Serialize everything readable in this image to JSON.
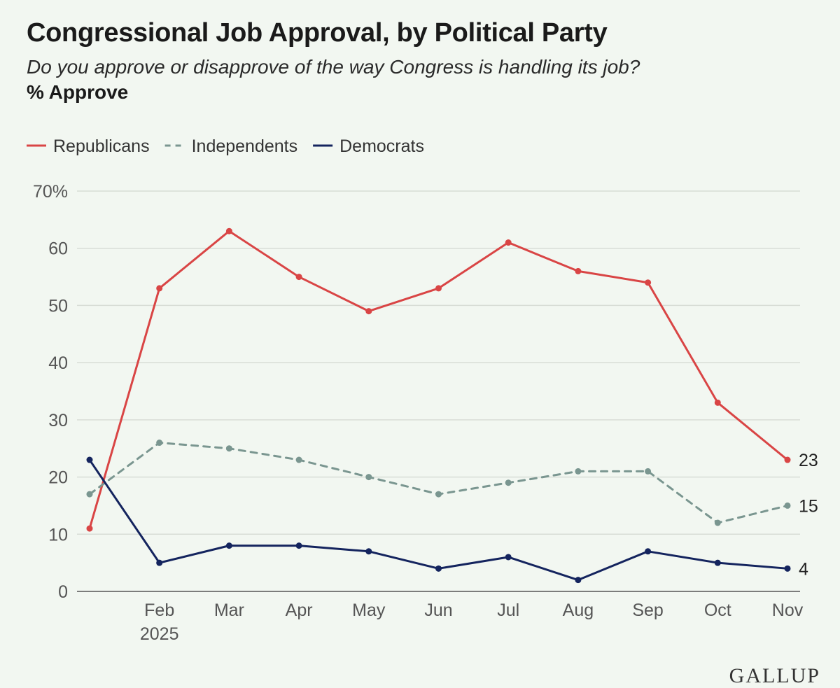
{
  "header": {
    "title": "Congressional Job Approval, by Political Party",
    "subtitle": "Do you approve or disapprove of the way Congress is handling its job?",
    "measure": "% Approve"
  },
  "brand": "GALLUP",
  "chart_data": {
    "type": "line",
    "title": "Congressional Job Approval, by Political Party",
    "subtitle": "Do you approve or disapprove of the way Congress is handling its job?",
    "ylabel": "% Approve",
    "xlabel": "",
    "categories": [
      "",
      "Feb",
      "Mar",
      "Apr",
      "May",
      "Jun",
      "Jul",
      "Aug",
      "Sep",
      "Oct",
      "Nov"
    ],
    "category_sublabels": [
      "",
      "2025",
      "",
      "",
      "",
      "",
      "",
      "",
      "",
      "",
      ""
    ],
    "ylim": [
      0,
      70
    ],
    "yticks": [
      0,
      10,
      20,
      30,
      40,
      50,
      60,
      70
    ],
    "ytick_labels": [
      "0",
      "10",
      "20",
      "30",
      "40",
      "50",
      "60",
      "70%"
    ],
    "grid": true,
    "legend_position": "top-left",
    "series": [
      {
        "name": "Republicans",
        "color": "#d94545",
        "style": "solid",
        "values": [
          11,
          53,
          63,
          55,
          49,
          53,
          61,
          56,
          54,
          33,
          23
        ],
        "end_label": "23"
      },
      {
        "name": "Independents",
        "color": "#7a9690",
        "style": "dashed",
        "values": [
          17,
          26,
          25,
          23,
          20,
          17,
          19,
          21,
          21,
          12,
          15
        ],
        "end_label": "15"
      },
      {
        "name": "Democrats",
        "color": "#14245e",
        "style": "solid",
        "values": [
          23,
          5,
          8,
          8,
          7,
          4,
          6,
          2,
          7,
          5,
          4
        ],
        "end_label": "4"
      }
    ]
  }
}
